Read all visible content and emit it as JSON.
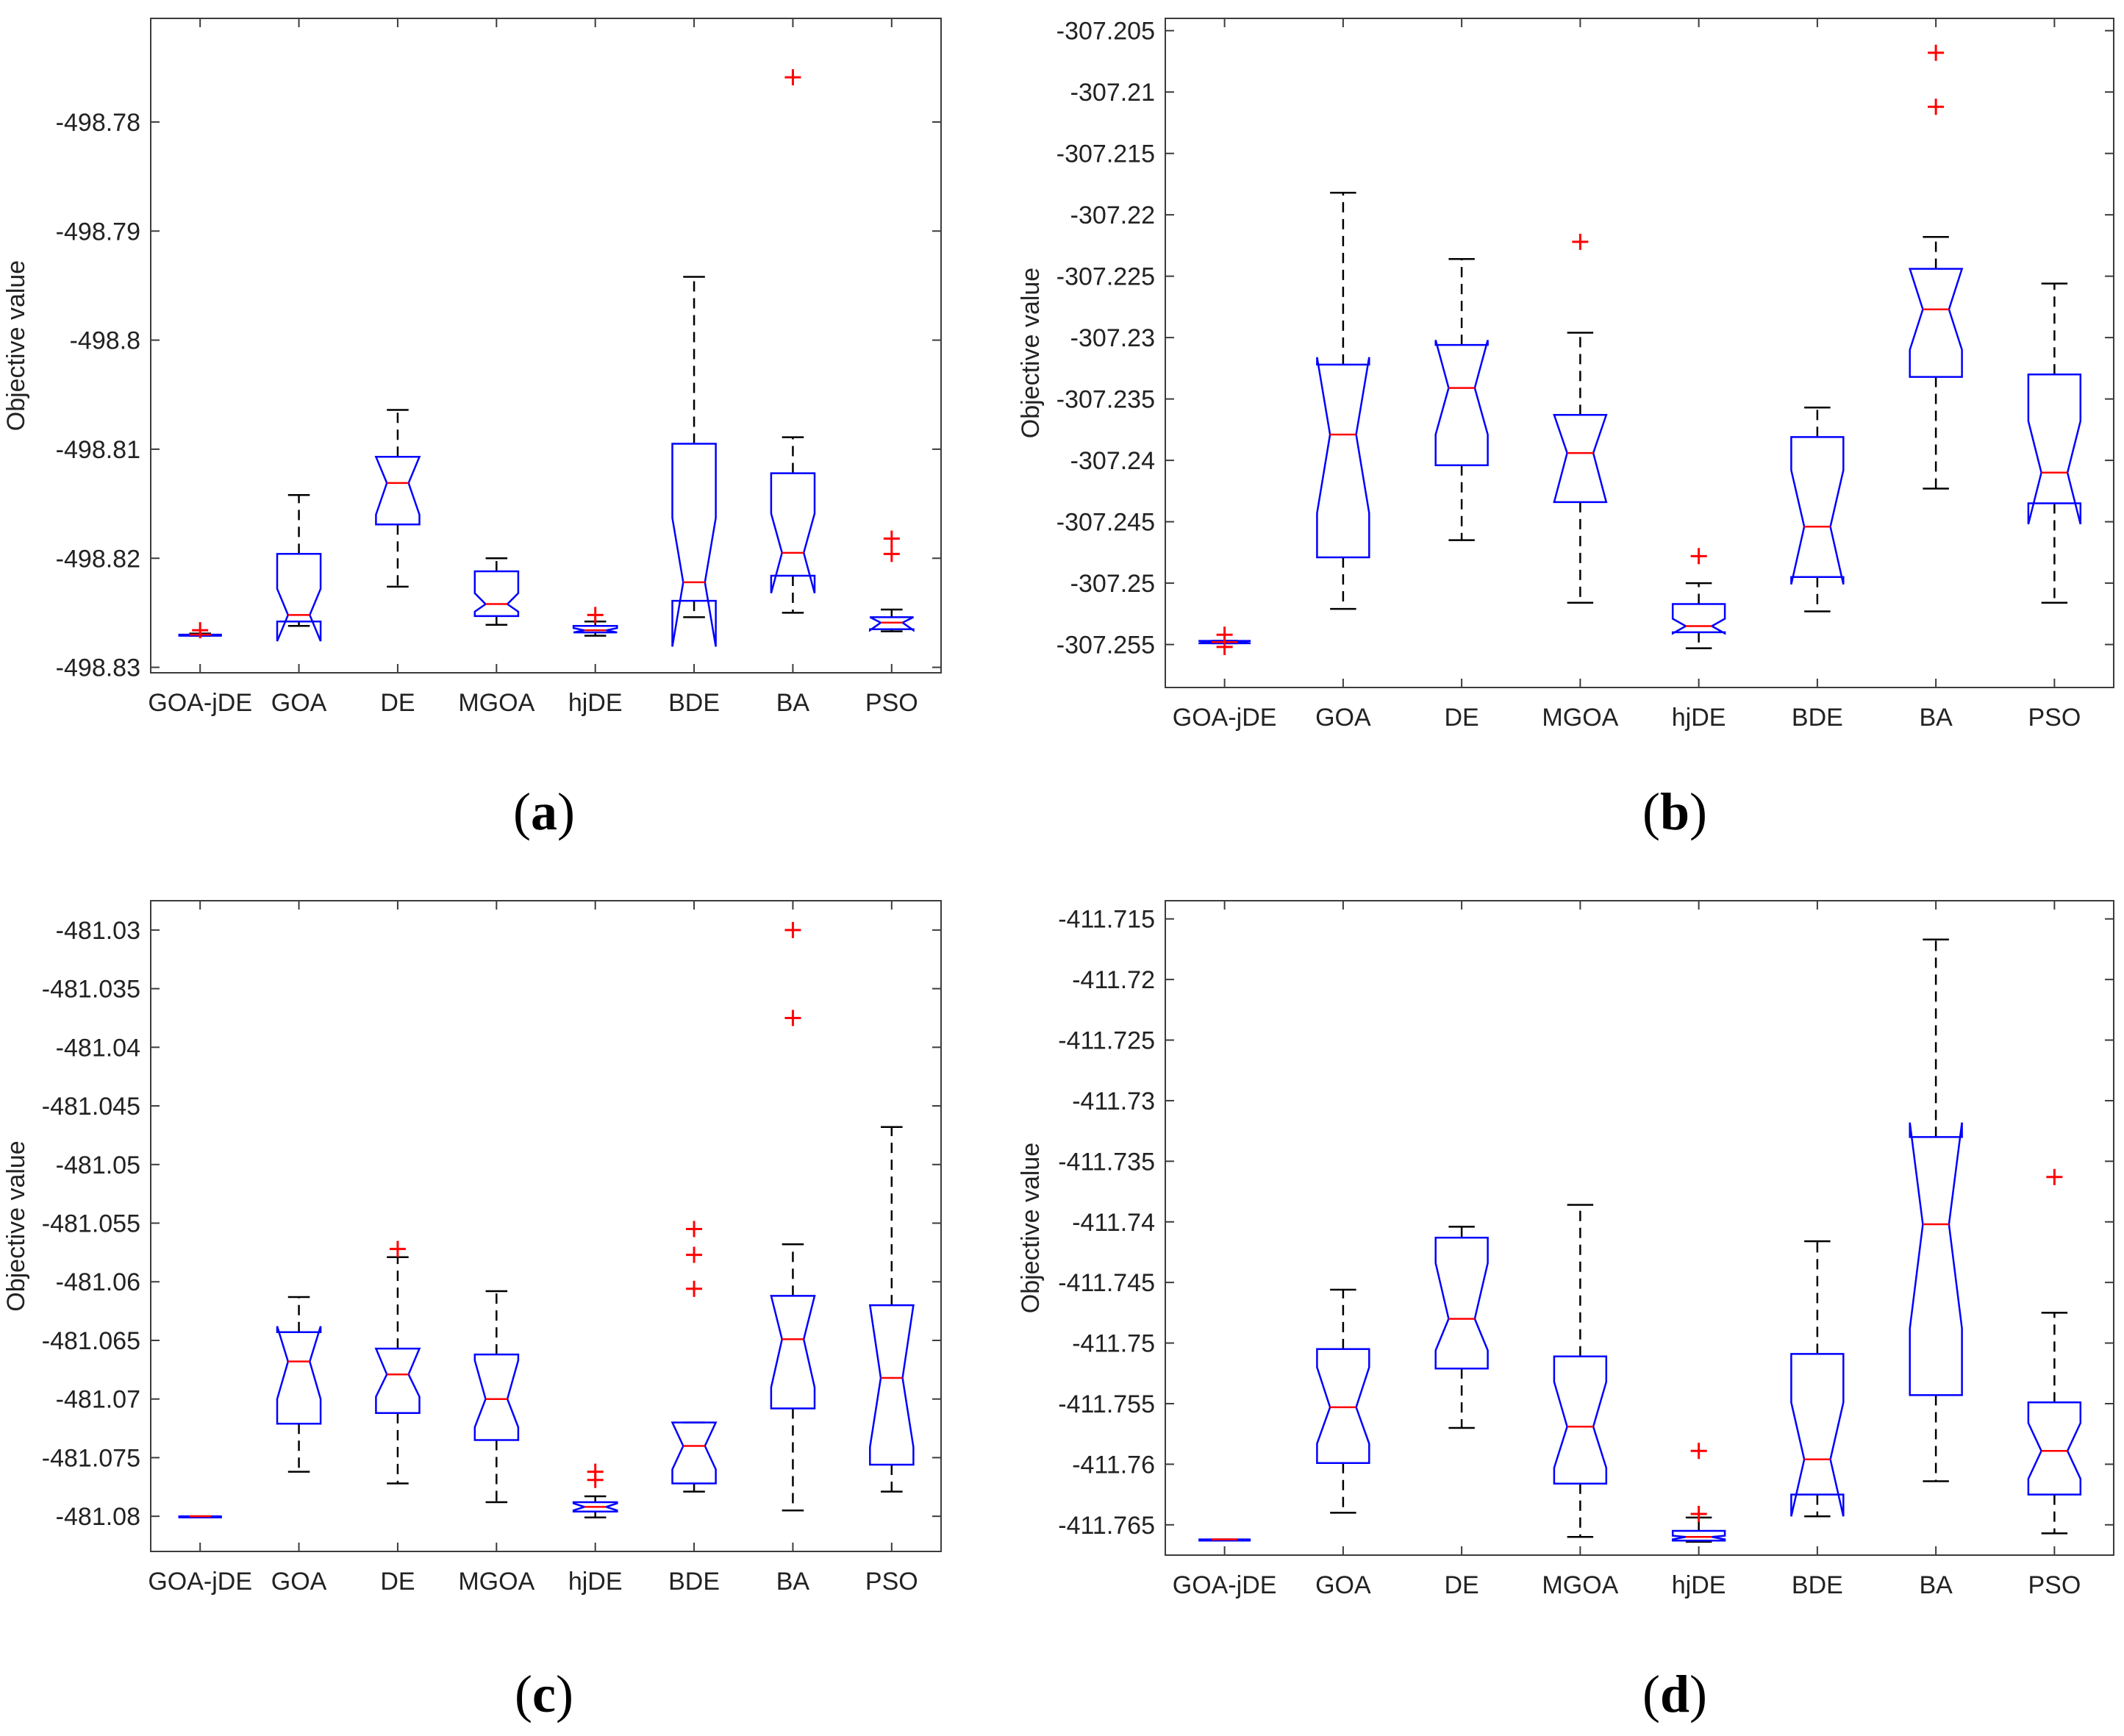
{
  "figure": {
    "ylabel": "Objective value"
  },
  "chart_data": [
    {
      "type": "boxplot",
      "panel_label": {
        "open": "(",
        "letter": "a",
        "close": ")"
      },
      "ylabel": "Objective value",
      "ylim": [
        -498.8305,
        -498.7705
      ],
      "yticks": [
        -498.83,
        -498.82,
        -498.81,
        -498.8,
        -498.79,
        -498.78
      ],
      "ytick_labels": [
        "-498.83",
        "-498.82",
        "-498.81",
        "-498.8",
        "-498.79",
        "-498.78"
      ],
      "categories": [
        "GOA-jDE",
        "GOA",
        "DE",
        "MGOA",
        "hjDE",
        "BDE",
        "BA",
        "PSO"
      ],
      "boxes": [
        {
          "name": "GOA-jDE",
          "whislo": -498.8271,
          "q1": -498.8271,
          "notchlo": -498.8271,
          "med": -498.827,
          "notchhi": -498.827,
          "q3": -498.827,
          "whishi": -498.8269,
          "fliers": [
            -498.8266
          ]
        },
        {
          "name": "GOA",
          "whislo": -498.8262,
          "q1": -498.8258,
          "notchlo": -498.8276,
          "med": -498.8252,
          "notchhi": -498.8228,
          "q3": -498.8196,
          "whishi": -498.8142,
          "fliers": []
        },
        {
          "name": "DE",
          "whislo": -498.8226,
          "q1": -498.8169,
          "notchlo": -498.816,
          "med": -498.8131,
          "notchhi": -498.8107,
          "q3": -498.8107,
          "whishi": -498.8064,
          "fliers": []
        },
        {
          "name": "MGOA",
          "whislo": -498.8261,
          "q1": -498.8253,
          "notchlo": -498.8249,
          "med": -498.8242,
          "notchhi": -498.8232,
          "q3": -498.8212,
          "whishi": -498.82,
          "fliers": []
        },
        {
          "name": "hjDE",
          "whislo": -498.8271,
          "q1": -498.8268,
          "notchlo": -498.8268,
          "med": -498.8266,
          "notchhi": -498.8264,
          "q3": -498.8262,
          "whishi": -498.8258,
          "fliers": [
            -498.8252
          ]
        },
        {
          "name": "BDE",
          "whislo": -498.8254,
          "q1": -498.8239,
          "notchlo": -498.8281,
          "med": -498.8222,
          "notchhi": -498.8163,
          "q3": -498.8095,
          "whishi": -498.7942,
          "fliers": []
        },
        {
          "name": "BA",
          "whislo": -498.825,
          "q1": -498.8216,
          "notchlo": -498.8232,
          "med": -498.8195,
          "notchhi": -498.8159,
          "q3": -498.8122,
          "whishi": -498.8089,
          "fliers": [
            -498.7759
          ]
        },
        {
          "name": "PSO",
          "whislo": -498.8267,
          "q1": -498.8265,
          "notchlo": -498.8266,
          "med": -498.8259,
          "notchhi": -498.8254,
          "q3": -498.8254,
          "whishi": -498.8247,
          "fliers": [
            -498.8182,
            -498.8196
          ]
        }
      ]
    },
    {
      "type": "boxplot",
      "panel_label": {
        "open": "(",
        "letter": "b",
        "close": ")"
      },
      "ylabel": "Objective value",
      "ylim": [
        -307.2585,
        -307.204
      ],
      "yticks": [
        -307.255,
        -307.25,
        -307.245,
        -307.24,
        -307.235,
        -307.23,
        -307.225,
        -307.22,
        -307.215,
        -307.21,
        -307.205
      ],
      "ytick_labels": [
        "-307.255",
        "-307.25",
        "-307.245",
        "-307.24",
        "-307.235",
        "-307.23",
        "-307.225",
        "-307.22",
        "-307.215",
        "-307.21",
        "-307.205"
      ],
      "categories": [
        "GOA-jDE",
        "GOA",
        "DE",
        "MGOA",
        "hjDE",
        "BDE",
        "BA",
        "PSO"
      ],
      "boxes": [
        {
          "name": "GOA-jDE",
          "whislo": -307.2549,
          "q1": -307.2549,
          "notchlo": -307.2549,
          "med": -307.2548,
          "notchhi": -307.2547,
          "q3": -307.2547,
          "whishi": -307.2547,
          "fliers": [
            -307.2542,
            -307.2552
          ]
        },
        {
          "name": "GOA",
          "whislo": -307.2521,
          "q1": -307.2479,
          "notchlo": -307.2443,
          "med": -307.2379,
          "notchhi": -307.2316,
          "q3": -307.2322,
          "whishi": -307.2182,
          "fliers": []
        },
        {
          "name": "DE",
          "whislo": -307.2465,
          "q1": -307.2404,
          "notchlo": -307.2379,
          "med": -307.2341,
          "notchhi": -307.2302,
          "q3": -307.2306,
          "whishi": -307.2236,
          "fliers": []
        },
        {
          "name": "MGOA",
          "whislo": -307.2516,
          "q1": -307.2434,
          "notchlo": -307.2434,
          "med": -307.2394,
          "notchhi": -307.2363,
          "q3": -307.2363,
          "whishi": -307.2296,
          "fliers": [
            -307.2222
          ]
        },
        {
          "name": "hjDE",
          "whislo": -307.2553,
          "q1": -307.254,
          "notchlo": -307.2541,
          "med": -307.2535,
          "notchhi": -307.2529,
          "q3": -307.2517,
          "whishi": -307.25,
          "fliers": [
            -307.2478
          ]
        },
        {
          "name": "BDE",
          "whislo": -307.2523,
          "q1": -307.2495,
          "notchlo": -307.2501,
          "med": -307.2454,
          "notchhi": -307.2408,
          "q3": -307.2381,
          "whishi": -307.2357,
          "fliers": []
        },
        {
          "name": "BA",
          "whislo": -307.2423,
          "q1": -307.2332,
          "notchlo": -307.231,
          "med": -307.2277,
          "notchhi": -307.2244,
          "q3": -307.2244,
          "whishi": -307.2218,
          "fliers": [
            -307.2068,
            -307.2112
          ]
        },
        {
          "name": "PSO",
          "whislo": -307.2516,
          "q1": -307.2435,
          "notchlo": -307.2452,
          "med": -307.241,
          "notchhi": -307.2368,
          "q3": -307.233,
          "whishi": -307.2256,
          "fliers": []
        }
      ]
    },
    {
      "type": "boxplot",
      "panel_label": {
        "open": "(",
        "letter": "c",
        "close": ")"
      },
      "ylabel": "Objective value",
      "ylim": [
        -481.083,
        -481.0275
      ],
      "yticks": [
        -481.08,
        -481.075,
        -481.07,
        -481.065,
        -481.06,
        -481.055,
        -481.05,
        -481.045,
        -481.04,
        -481.035,
        -481.03
      ],
      "ytick_labels": [
        "-481.08",
        "-481.075",
        "-481.07",
        "-481.065",
        "-481.06",
        "-481.055",
        "-481.05",
        "-481.045",
        "-481.04",
        "-481.035",
        "-481.03"
      ],
      "categories": [
        "GOA-jDE",
        "GOA",
        "DE",
        "MGOA",
        "hjDE",
        "BDE",
        "BA",
        "PSO"
      ],
      "boxes": [
        {
          "name": "GOA-jDE",
          "whislo": -481.0801,
          "q1": -481.0801,
          "notchlo": -481.0801,
          "med": -481.08,
          "notchhi": -481.08,
          "q3": -481.08,
          "whishi": -481.08,
          "fliers": []
        },
        {
          "name": "GOA",
          "whislo": -481.0762,
          "q1": -481.0721,
          "notchlo": -481.07,
          "med": -481.0668,
          "notchhi": -481.0638,
          "q3": -481.0643,
          "whishi": -481.0613,
          "fliers": []
        },
        {
          "name": "DE",
          "whislo": -481.0772,
          "q1": -481.0712,
          "notchlo": -481.0698,
          "med": -481.0679,
          "notchhi": -481.0657,
          "q3": -481.0657,
          "whishi": -481.0579,
          "fliers": [
            -481.0572
          ]
        },
        {
          "name": "MGOA",
          "whislo": -481.0788,
          "q1": -481.0735,
          "notchlo": -481.0724,
          "med": -481.07,
          "notchhi": -481.0667,
          "q3": -481.0662,
          "whishi": -481.0608,
          "fliers": []
        },
        {
          "name": "hjDE",
          "whislo": -481.0801,
          "q1": -481.0796,
          "notchlo": -481.0795,
          "med": -481.0792,
          "notchhi": -481.0789,
          "q3": -481.0788,
          "whishi": -481.0783,
          "fliers": [
            -481.0762,
            -481.0769
          ]
        },
        {
          "name": "BDE",
          "whislo": -481.0779,
          "q1": -481.0772,
          "notchlo": -481.076,
          "med": -481.074,
          "notchhi": -481.072,
          "q3": -481.072,
          "whishi": -481.072,
          "fliers": [
            -481.0555,
            -481.0577,
            -481.0606
          ]
        },
        {
          "name": "BA",
          "whislo": -481.0795,
          "q1": -481.0708,
          "notchlo": -481.069,
          "med": -481.0649,
          "notchhi": -481.0612,
          "q3": -481.0612,
          "whishi": -481.0568,
          "fliers": [
            -481.03,
            -481.0375
          ]
        },
        {
          "name": "PSO",
          "whislo": -481.0779,
          "q1": -481.0756,
          "notchlo": -481.0741,
          "med": -481.0682,
          "notchhi": -481.062,
          "q3": -481.062,
          "whishi": -481.0468,
          "fliers": []
        }
      ]
    },
    {
      "type": "boxplot",
      "panel_label": {
        "open": "(",
        "letter": "d",
        "close": ")"
      },
      "ylabel": "Objective value",
      "ylim": [
        -411.7675,
        -411.7135
      ],
      "yticks": [
        -411.765,
        -411.76,
        -411.755,
        -411.75,
        -411.745,
        -411.74,
        -411.735,
        -411.73,
        -411.725,
        -411.72,
        -411.715
      ],
      "ytick_labels": [
        "-411.765",
        "-411.76",
        "-411.755",
        "-411.75",
        "-411.745",
        "-411.74",
        "-411.735",
        "-411.73",
        "-411.725",
        "-411.72",
        "-411.715"
      ],
      "categories": [
        "GOA-jDE",
        "GOA",
        "DE",
        "MGOA",
        "hjDE",
        "BDE",
        "BA",
        "PSO"
      ],
      "boxes": [
        {
          "name": "GOA-jDE",
          "whislo": -411.7663,
          "q1": -411.7663,
          "notchlo": -411.7663,
          "med": -411.7662,
          "notchhi": -411.7662,
          "q3": -411.7662,
          "whishi": -411.7662,
          "fliers": []
        },
        {
          "name": "GOA",
          "whislo": -411.764,
          "q1": -411.7599,
          "notchlo": -411.7583,
          "med": -411.7553,
          "notchhi": -411.752,
          "q3": -411.7505,
          "whishi": -411.7456,
          "fliers": []
        },
        {
          "name": "DE",
          "whislo": -411.757,
          "q1": -411.7521,
          "notchlo": -411.7506,
          "med": -411.748,
          "notchhi": -411.7434,
          "q3": -411.7413,
          "whishi": -411.7404,
          "fliers": []
        },
        {
          "name": "MGOA",
          "whislo": -411.766,
          "q1": -411.7616,
          "notchlo": -411.7603,
          "med": -411.7569,
          "notchhi": -411.7532,
          "q3": -411.7511,
          "whishi": -411.7386,
          "fliers": []
        },
        {
          "name": "hjDE",
          "whislo": -411.7664,
          "q1": -411.7663,
          "notchlo": -411.7662,
          "med": -411.766,
          "notchhi": -411.7659,
          "q3": -411.7655,
          "whishi": -411.7644,
          "fliers": [
            -411.7589,
            -411.7641
          ]
        },
        {
          "name": "BDE",
          "whislo": -411.7643,
          "q1": -411.7625,
          "notchlo": -411.7643,
          "med": -411.7596,
          "notchhi": -411.7549,
          "q3": -411.7509,
          "whishi": -411.7416,
          "fliers": []
        },
        {
          "name": "BA",
          "whislo": -411.7614,
          "q1": -411.7543,
          "notchlo": -411.7488,
          "med": -411.7402,
          "notchhi": -411.7318,
          "q3": -411.733,
          "whishi": -411.7167,
          "fliers": []
        },
        {
          "name": "PSO",
          "whislo": -411.7657,
          "q1": -411.7625,
          "notchlo": -411.7612,
          "med": -411.7589,
          "notchhi": -411.7566,
          "q3": -411.7549,
          "whishi": -411.7475,
          "fliers": [
            -411.7363
          ]
        }
      ]
    }
  ],
  "colors": {
    "box": "#0000ff",
    "median": "#ff0000",
    "whisker": "#000000",
    "outlier": "#ff0000",
    "axis": "#3c3c3c",
    "text": "#222222"
  }
}
